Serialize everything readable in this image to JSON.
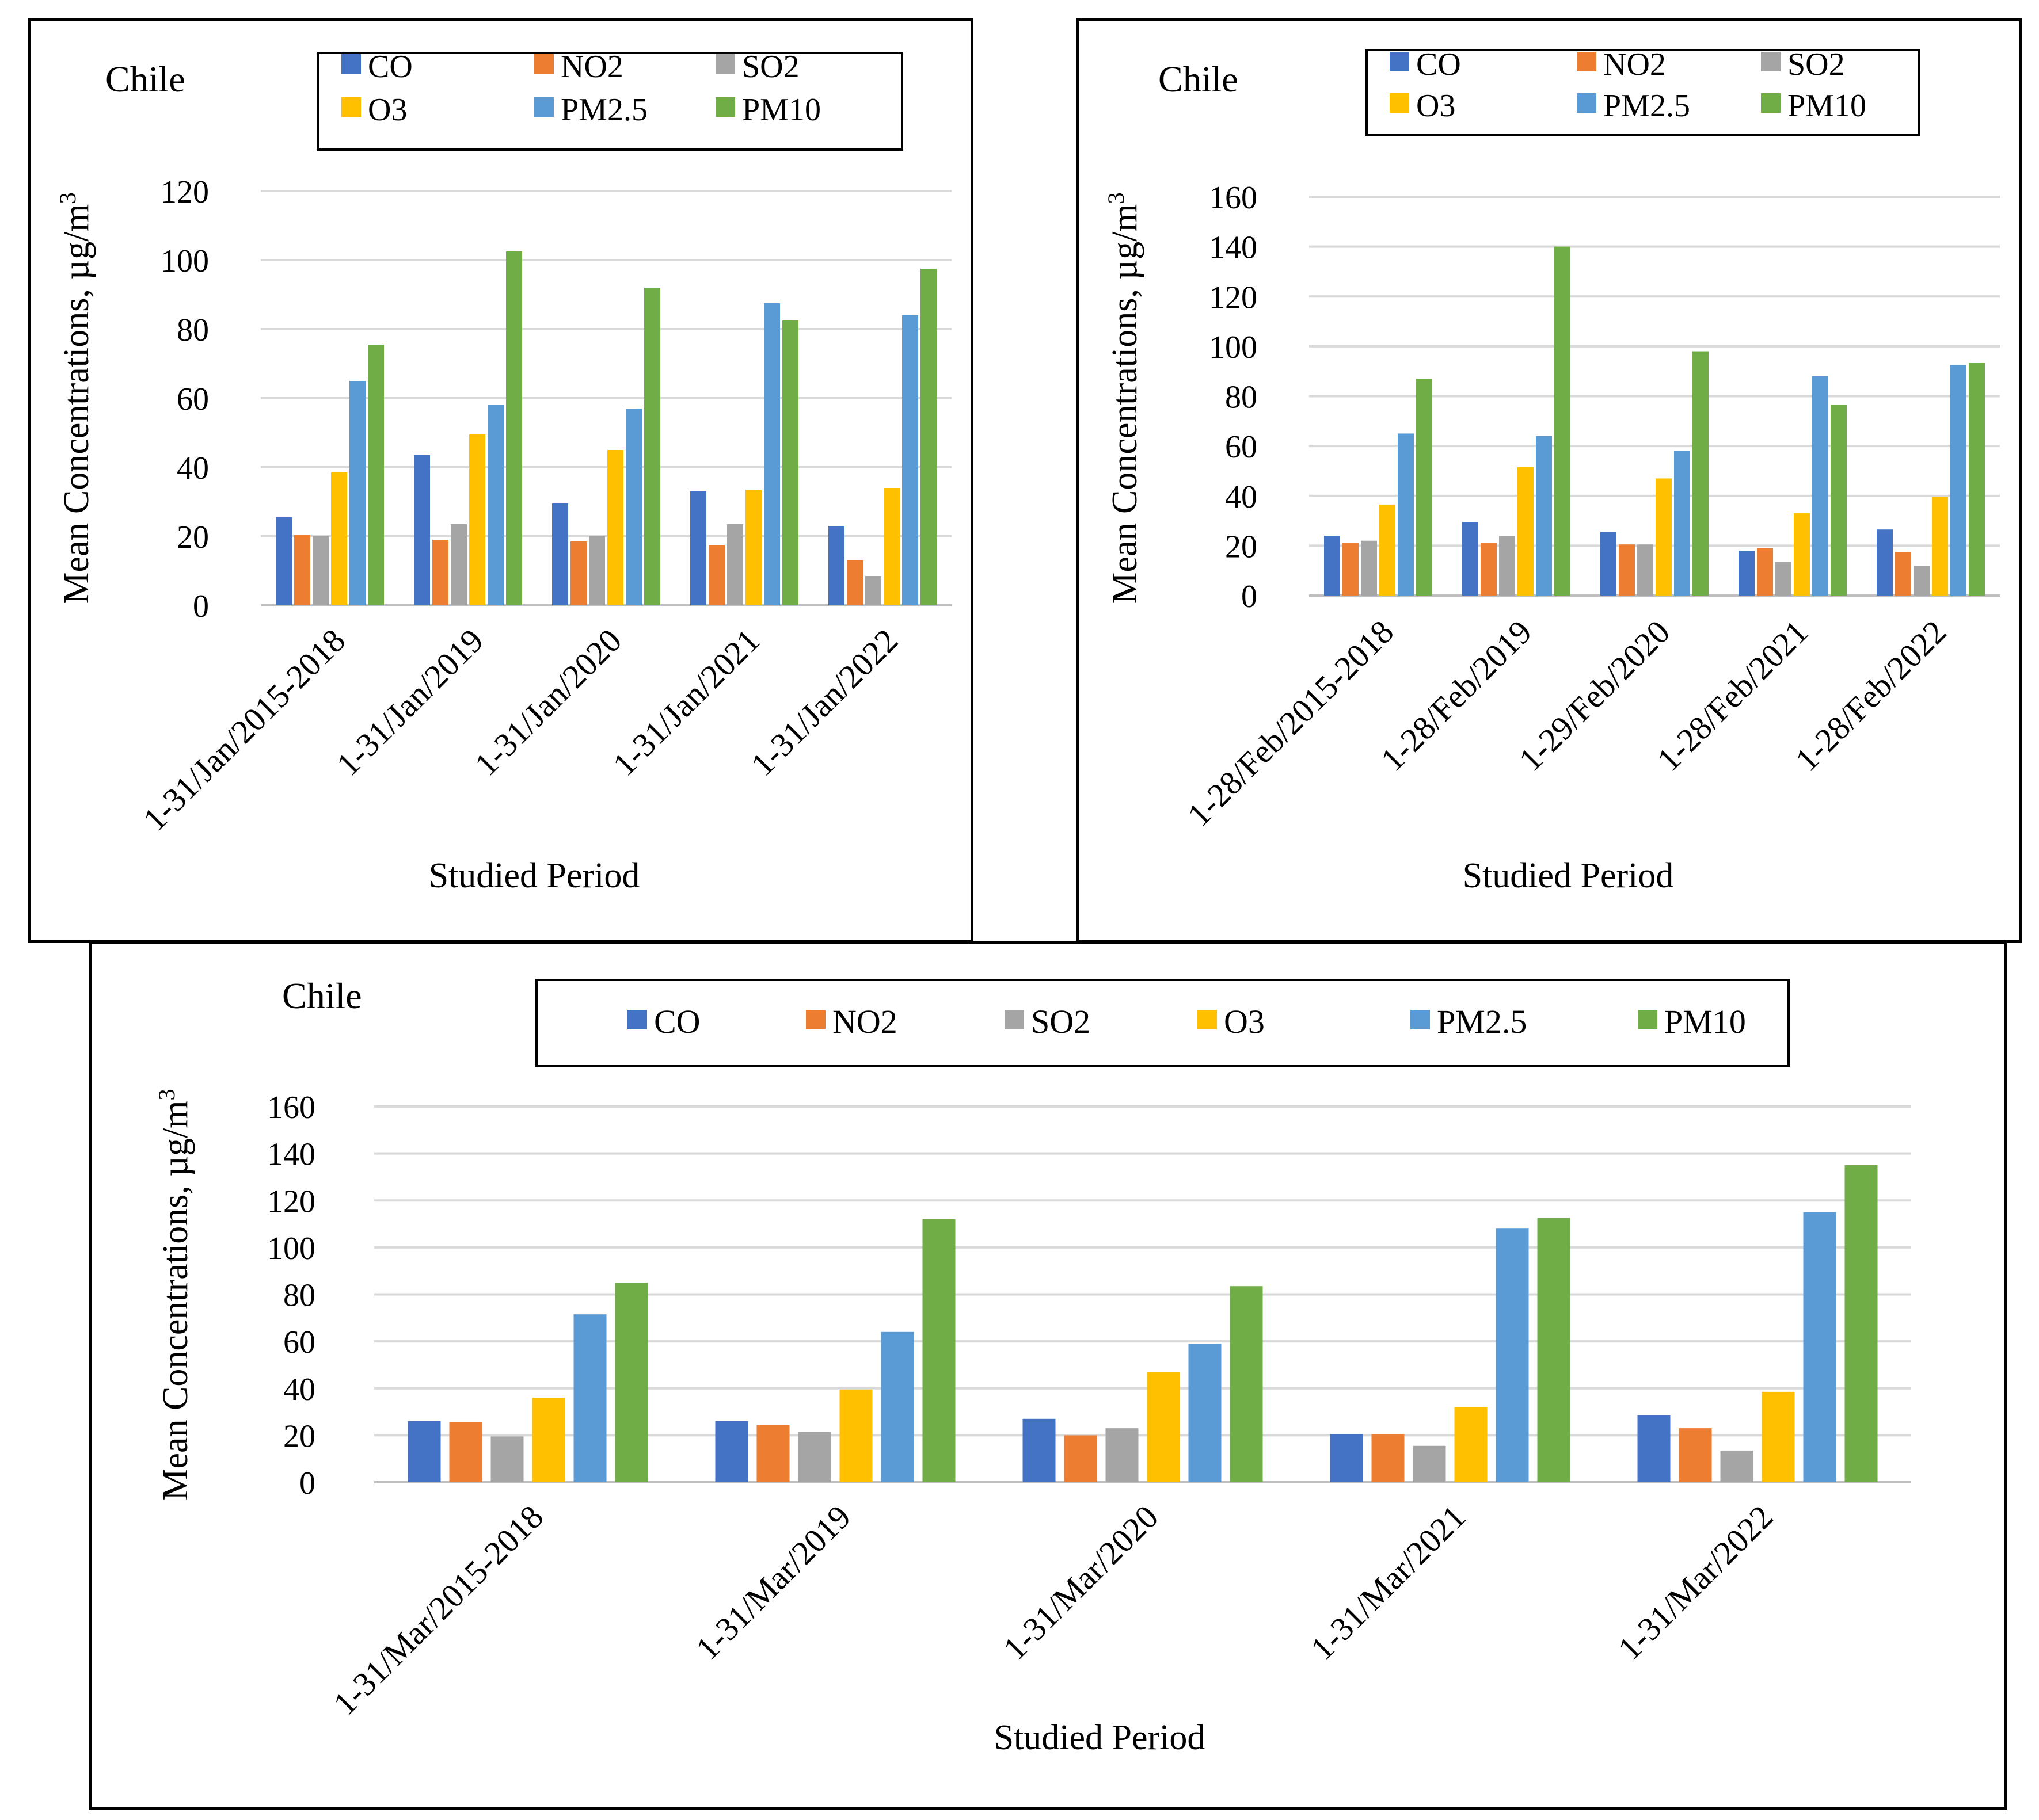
{
  "colors": {
    "CO": "#4472C4",
    "NO2": "#ED7D31",
    "SO2": "#A5A5A5",
    "O3": "#FFC000",
    "PM2.5": "#5B9BD5",
    "PM10": "#70AD47",
    "grid": "#D9D9D9"
  },
  "chart_data": [
    {
      "type": "bar",
      "title": "Chile",
      "xlabel": "Studied Period",
      "ylabel": "Mean Concentrations, µg/m",
      "ylabel_sup": "3",
      "ylim": [
        0,
        120
      ],
      "yticks": [
        0,
        20,
        40,
        60,
        80,
        100,
        120
      ],
      "legend": "top-right",
      "categories": [
        "1-31/Jan/2015-2018",
        "1-31/Jan/2019",
        "1-31/Jan/2020",
        "1-31/Jan/2021",
        "1-31/Jan/2022"
      ],
      "series": [
        {
          "name": "CO",
          "values": [
            25.5,
            43.5,
            29.5,
            33,
            23
          ]
        },
        {
          "name": "NO2",
          "values": [
            20.5,
            19,
            18.5,
            17.5,
            13
          ]
        },
        {
          "name": "SO2",
          "values": [
            20,
            23.5,
            20,
            23.5,
            8.5
          ]
        },
        {
          "name": "O3",
          "values": [
            38.5,
            49.5,
            45,
            33.5,
            34
          ]
        },
        {
          "name": "PM2.5",
          "values": [
            65,
            58,
            57,
            87.5,
            84
          ]
        },
        {
          "name": "PM10",
          "values": [
            75.5,
            102.5,
            92,
            82.5,
            97.5
          ]
        }
      ]
    },
    {
      "type": "bar",
      "title": "Chile",
      "xlabel": "Studied Period",
      "ylabel": "Mean Concentrations, µg/m",
      "ylabel_sup": "3",
      "ylim": [
        0,
        160
      ],
      "yticks": [
        0,
        20,
        40,
        60,
        80,
        100,
        120,
        140,
        160
      ],
      "legend": "top-right",
      "categories": [
        "1-28/Feb/2015-2018",
        "1-28/Feb/2019",
        "1-29/Feb/2020",
        "1-28/Feb/2021",
        "1-28/Feb/2022"
      ],
      "series": [
        {
          "name": "CO",
          "values": [
            24,
            29.5,
            25.5,
            18,
            26.5
          ]
        },
        {
          "name": "NO2",
          "values": [
            21,
            21,
            20.5,
            19,
            17.5
          ]
        },
        {
          "name": "SO2",
          "values": [
            22,
            24,
            20.5,
            13.5,
            12
          ]
        },
        {
          "name": "O3",
          "values": [
            36.5,
            51.5,
            47,
            33,
            39.5
          ]
        },
        {
          "name": "PM2.5",
          "values": [
            65,
            64,
            58,
            88,
            92.5
          ]
        },
        {
          "name": "PM10",
          "values": [
            87,
            140,
            98,
            76.5,
            93.5
          ]
        }
      ]
    },
    {
      "type": "bar",
      "title": "Chile",
      "xlabel": "Studied Period",
      "ylabel": "Mean Concentrations, µg/m",
      "ylabel_sup": "3",
      "ylim": [
        0,
        160
      ],
      "yticks": [
        0,
        20,
        40,
        60,
        80,
        100,
        120,
        140,
        160
      ],
      "legend": "top",
      "categories": [
        "1-31/Mar/2015-2018",
        "1-31/Mar/2019",
        "1-31/Mar/2020",
        "1-31/Mar/2021",
        "1-31/Mar/2022"
      ],
      "series": [
        {
          "name": "CO",
          "values": [
            26,
            26,
            27,
            20.5,
            28.5
          ]
        },
        {
          "name": "NO2",
          "values": [
            25.5,
            24.5,
            20,
            20.5,
            23
          ]
        },
        {
          "name": "SO2",
          "values": [
            19.5,
            21.5,
            23,
            15.5,
            13.5
          ]
        },
        {
          "name": "O3",
          "values": [
            36,
            39.5,
            47,
            32,
            38.5
          ]
        },
        {
          "name": "PM2.5",
          "values": [
            71.5,
            64,
            59,
            108,
            115
          ]
        },
        {
          "name": "PM10",
          "values": [
            85,
            112,
            83.5,
            112.5,
            135
          ]
        }
      ]
    }
  ]
}
